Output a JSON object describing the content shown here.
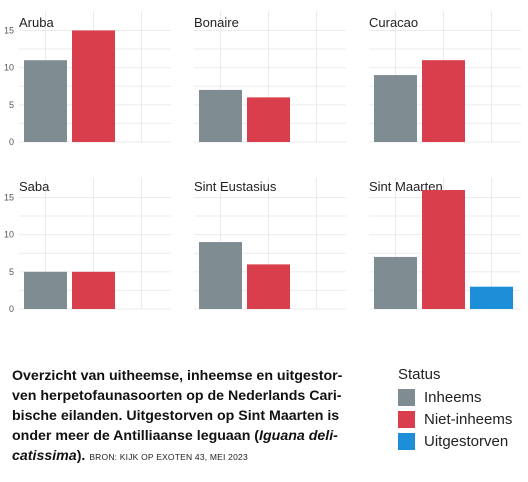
{
  "chart_data": {
    "type": "bar",
    "layout": "facet-grid-2x3",
    "ylim": [
      0,
      16
    ],
    "yticks": [
      "0",
      "5",
      "10",
      "15"
    ],
    "grid": true,
    "legend_placement": "bottom-right",
    "panels": [
      {
        "title": "Aruba",
        "values": [
          11,
          15,
          null
        ]
      },
      {
        "title": "Bonaire",
        "values": [
          7,
          6,
          null
        ]
      },
      {
        "title": "Curacao",
        "values": [
          9,
          11,
          null
        ]
      },
      {
        "title": "Saba",
        "values": [
          5,
          5,
          null
        ]
      },
      {
        "title": "Sint Eustasius",
        "values": [
          9,
          6,
          null
        ]
      },
      {
        "title": "Sint Maarten",
        "values": [
          7,
          16,
          3
        ]
      }
    ],
    "series": [
      {
        "name": "Inheems",
        "color": "#7f8c92"
      },
      {
        "name": "Niet-inheems",
        "color": "#d83e4c"
      },
      {
        "name": "Uitgestorven",
        "color": "#1d8fd8"
      }
    ],
    "legend": {
      "title": "Status"
    }
  },
  "caption": {
    "part1": "Overzicht van uitheemse, inheemse en uitgestor-ven herpetofaunasoorten op de Nederlands Cari-bische eilanden. Uitgestorven op Sint Maarten is onder meer de Antilliaanse leguaan (",
    "italic": "Iguana deli-catissima",
    "part2": ").",
    "source": "BRON: KIJK OP EXOTEN 43, MEI 2023"
  }
}
